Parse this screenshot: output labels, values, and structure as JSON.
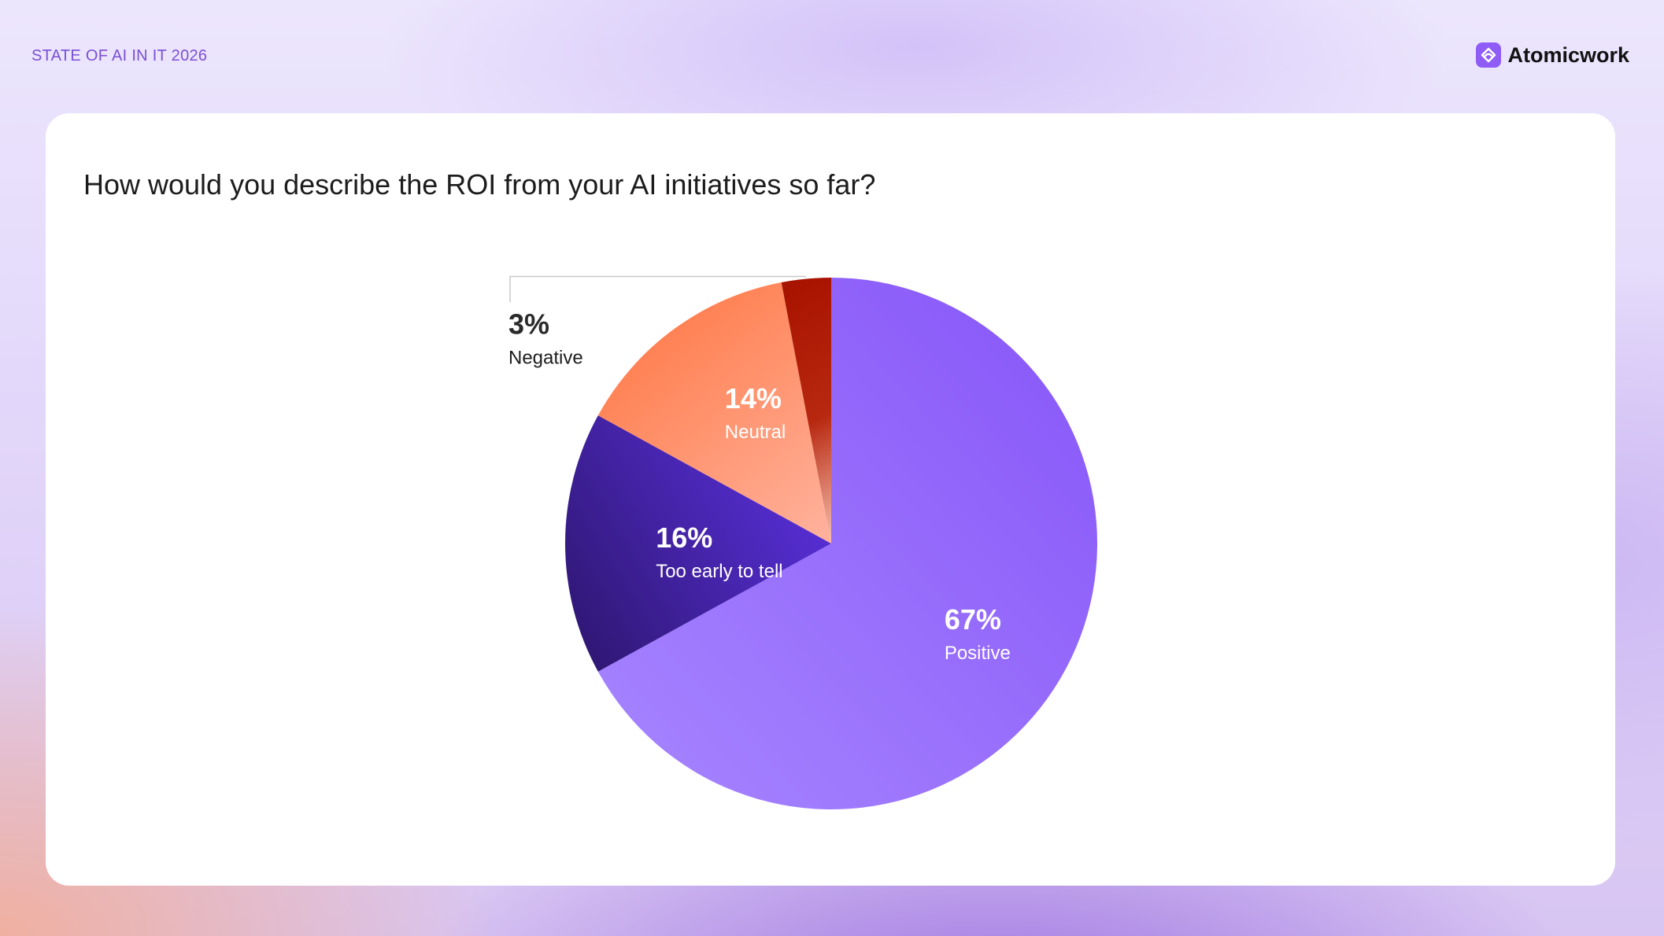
{
  "header": {
    "report_label": "STATE OF AI IN IT 2026",
    "brand_name": "Atomicwork",
    "brand_icon": "atomicwork-logo-icon"
  },
  "question": "How would you describe the ROI from your AI initiatives so far?",
  "chart_data": {
    "type": "pie",
    "title": "",
    "start": "12 o'clock, clockwise",
    "slices": [
      {
        "label": "Positive",
        "value": 67,
        "value_label": "67%",
        "color": "#9a72fc",
        "label_position": "inside"
      },
      {
        "label": "Too early to tell",
        "value": 16,
        "value_label": "16%",
        "color": "#3d1f9c",
        "label_position": "inside"
      },
      {
        "label": "Neutral",
        "value": 14,
        "value_label": "14%",
        "color": "#ff8c63",
        "label_position": "inside"
      },
      {
        "label": "Negative",
        "value": 3,
        "value_label": "3%",
        "color": "#a81500",
        "label_position": "outside-callout"
      }
    ]
  }
}
